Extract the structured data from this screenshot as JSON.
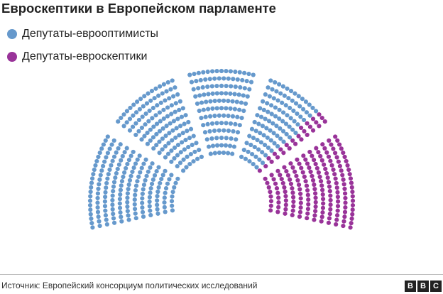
{
  "title": "Евроскептики в Европейском парламенте",
  "legend": [
    {
      "label": "Депутаты-еврооптимисты",
      "color": "#6699cc"
    },
    {
      "label": "Депутаты-евроскептики",
      "color": "#993399"
    }
  ],
  "chart_data": {
    "type": "parliament",
    "title": "Евроскептики в Европейском парламенте",
    "series": [
      {
        "name": "Депутаты-еврооптимисты",
        "color": "#6699cc",
        "seats": 546
      },
      {
        "name": "Депутаты-евроскептики",
        "color": "#993399",
        "seats": 205
      }
    ],
    "total_seats": 751
  },
  "source": "Источник: Европейский консорциум политических исследований",
  "logo": {
    "letters": [
      "B",
      "B",
      "C"
    ]
  }
}
